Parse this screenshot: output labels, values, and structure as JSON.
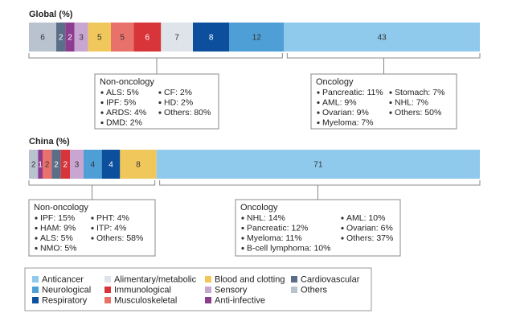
{
  "chart_data": [
    {
      "type": "bar",
      "title": "Global (%)",
      "values": [
        6,
        2,
        2,
        3,
        5,
        5,
        6,
        7,
        8,
        12,
        43
      ],
      "colors": [
        "#b9c3d0",
        "#5b6e87",
        "#8d3d8f",
        "#c9a5d2",
        "#f0c75a",
        "#e8716b",
        "#d8353b",
        "#dfe4ea",
        "#0c4f9c",
        "#4f9fd7",
        "#8fcaed"
      ],
      "annotations": [
        {
          "title": "Non-oncology",
          "columns": [
            [
              "ALS: 5%",
              "IPF: 5%",
              "ARDS: 4%",
              "DMD: 2%"
            ],
            [
              "CF: 2%",
              "HD: 2%",
              "Others: 80%"
            ]
          ]
        },
        {
          "title": "Oncology",
          "columns": [
            [
              "Pancreatic: 11%",
              "AML: 9%",
              "Ovarian: 9%",
              "Myeloma: 7%"
            ],
            [
              "Stomach: 7%",
              "NHL: 7%",
              "Others: 50%"
            ]
          ]
        }
      ]
    },
    {
      "type": "bar",
      "title": "China (%)",
      "values": [
        2,
        1,
        2,
        2,
        2,
        3,
        4,
        4,
        8,
        71
      ],
      "colors": [
        "#b9c3d0",
        "#8d3d8f",
        "#e8716b",
        "#5b6e87",
        "#d8353b",
        "#c9a5d2",
        "#4f9fd7",
        "#0c4f9c",
        "#f0c75a",
        "#8fcaed"
      ],
      "annotations": [
        {
          "title": "Non-oncology",
          "columns": [
            [
              "IPF: 15%",
              "HAM: 9%",
              "ALS: 5%",
              "NMO: 5%"
            ],
            [
              "PHT: 4%",
              "ITP: 4%",
              "Others: 58%"
            ]
          ]
        },
        {
          "title": "Oncology",
          "columns": [
            [
              "NHL: 14%",
              "Pancreatic: 12%",
              "Myeloma: 11%",
              "B-cell lymphoma: 10%"
            ],
            [
              "AML: 10%",
              "Ovarian: 6%",
              "Others: 37%"
            ]
          ]
        }
      ]
    }
  ],
  "legend": {
    "items": [
      {
        "label": "Anticancer",
        "color": "#8fcaed"
      },
      {
        "label": "Alimentary/metabolic",
        "color": "#dfe4ea"
      },
      {
        "label": "Blood and clotting",
        "color": "#f0c75a"
      },
      {
        "label": "Cardiovascular",
        "color": "#5b6e87"
      },
      {
        "label": "Neurological",
        "color": "#4f9fd7"
      },
      {
        "label": "Immunological",
        "color": "#d8353b"
      },
      {
        "label": "Sensory",
        "color": "#c9a5d2"
      },
      {
        "label": "Others",
        "color": "#b9c3d0"
      },
      {
        "label": "Respiratory",
        "color": "#0c4f9c"
      },
      {
        "label": "Musculoskeletal",
        "color": "#e8716b"
      },
      {
        "label": "Anti-infective",
        "color": "#8d3d8f"
      }
    ]
  }
}
